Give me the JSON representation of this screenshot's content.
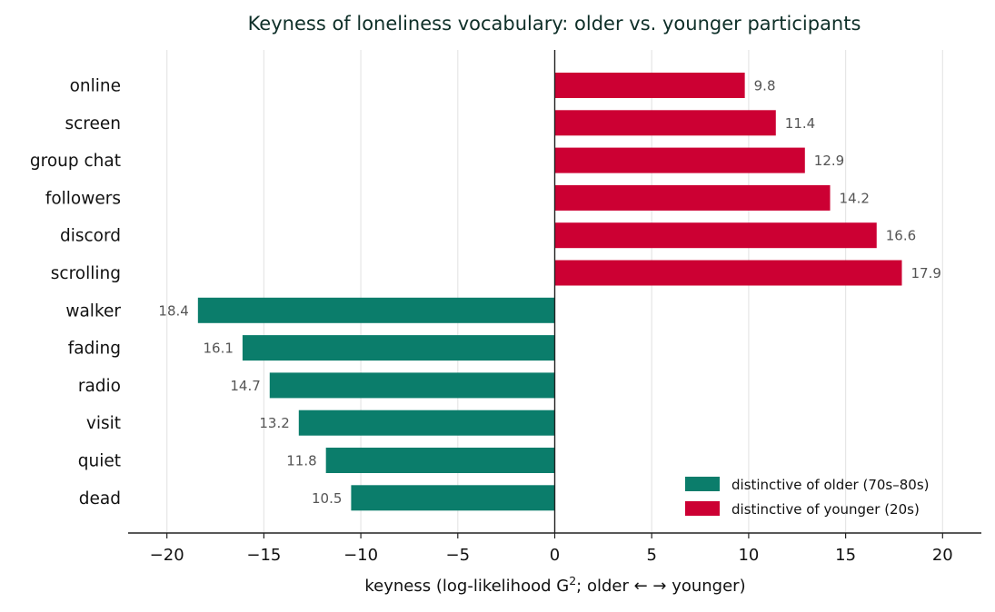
{
  "chart_data": {
    "type": "bar",
    "orientation": "horizontal",
    "title": "Keyness of loneliness vocabulary: older vs. younger participants",
    "xlabel_parts": [
      "keyness  (log-likelihood G",
      "2",
      ";  older ←    → younger)"
    ],
    "xlim": [
      -22,
      22
    ],
    "xticks": [
      -20,
      -15,
      -10,
      -5,
      0,
      5,
      10,
      15,
      20
    ],
    "xtick_labels": [
      "−20",
      "−15",
      "−10",
      "−5",
      "0",
      "5",
      "10",
      "15",
      "20"
    ],
    "grid": "vertical",
    "legend_position": "bottom-right",
    "categories": [
      "online",
      "screen",
      "group chat",
      "followers",
      "discord",
      "scrolling",
      "walker",
      "fading",
      "radio",
      "visit",
      "quiet",
      "dead"
    ],
    "values": [
      9.8,
      11.4,
      12.9,
      14.2,
      16.6,
      17.9,
      -18.4,
      -16.1,
      -14.7,
      -13.2,
      -11.8,
      -10.5
    ],
    "value_labels": [
      "9.8",
      "11.4",
      "12.9",
      "14.2",
      "16.6",
      "17.9",
      "18.4",
      "16.1",
      "14.7",
      "13.2",
      "11.8",
      "10.5"
    ],
    "series": [
      {
        "name": "distinctive of older (70s–80s)",
        "color": "#0b7d6b"
      },
      {
        "name": "distinctive of younger (20s)",
        "color": "#cc0033"
      }
    ]
  }
}
